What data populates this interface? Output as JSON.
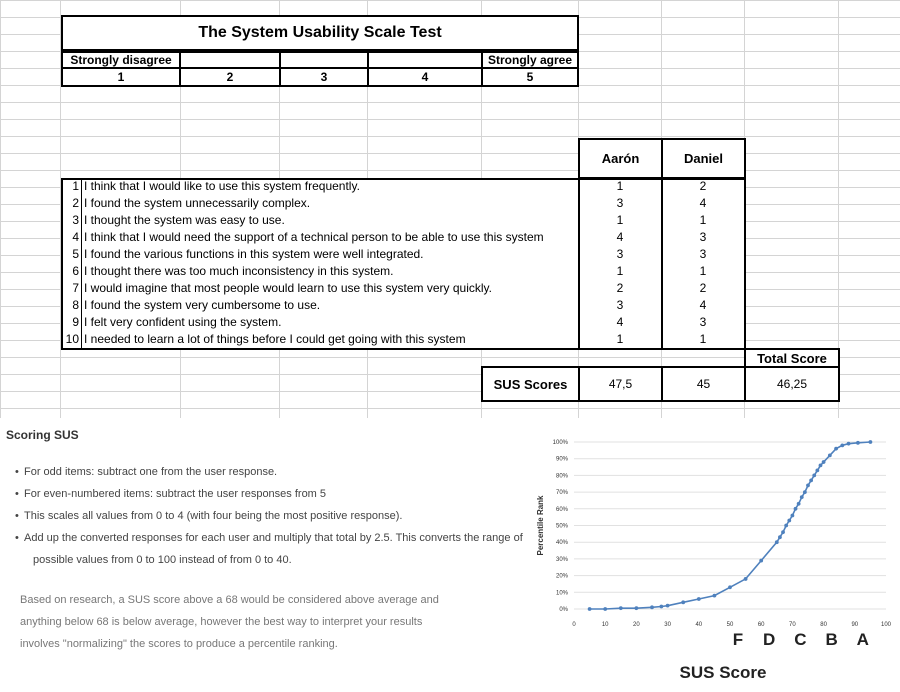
{
  "table": {
    "title": "The System Usability Scale Test",
    "scale": {
      "low_label": "Strongly disagree",
      "high_label": "Strongly agree",
      "numbers": [
        "1",
        "2",
        "3",
        "4",
        "5"
      ]
    },
    "users": [
      "Aarón",
      "Daniel"
    ],
    "statements": [
      {
        "n": "1",
        "text": "I think that I would like to use this system frequently.",
        "scores": [
          "1",
          "2"
        ]
      },
      {
        "n": "2",
        "text": "I found the system unnecessarily complex.",
        "scores": [
          "3",
          "4"
        ]
      },
      {
        "n": "3",
        "text": "I thought the system was easy to use.",
        "scores": [
          "1",
          "1"
        ]
      },
      {
        "n": "4",
        "text": "I think that I would need the support of a technical person to be able to use this system",
        "scores": [
          "4",
          "3"
        ]
      },
      {
        "n": "5",
        "text": "I found the various functions in this system were well integrated.",
        "scores": [
          "3",
          "3"
        ]
      },
      {
        "n": "6",
        "text": "I thought there was too much inconsistency in this system.",
        "scores": [
          "1",
          "1"
        ]
      },
      {
        "n": "7",
        "text": "I would imagine that most people would learn to use this system very quickly.",
        "scores": [
          "2",
          "2"
        ]
      },
      {
        "n": "8",
        "text": "I found the system very cumbersome to use.",
        "scores": [
          "3",
          "4"
        ]
      },
      {
        "n": "9",
        "text": "I felt very confident using the system.",
        "scores": [
          "4",
          "3"
        ]
      },
      {
        "n": "10",
        "text": "I needed to learn a lot of things before I could get going with this system",
        "scores": [
          "1",
          "1"
        ]
      }
    ],
    "total_label": "Total Score",
    "sus_label": "SUS Scores",
    "sus_values": [
      "47,5",
      "45"
    ],
    "total_value": "46,25"
  },
  "scoring": {
    "heading": "Scoring SUS",
    "bullets": [
      "For odd items: subtract one from the user response.",
      "For even-numbered items: subtract the user responses from 5",
      "This scales all values from 0 to 4 (with four being the most positive response).",
      "Add up the converted responses for each user and multiply that total by 2.5. This converts the range of"
    ],
    "bullet_continuation": "possible values from 0 to 100 instead of from 0 to 40.",
    "paragraph_lines": [
      "Based on research, a SUS score above a 68 would be considered above average and",
      "anything below 68 is below average, however the best way to interpret your results",
      "involves \"normalizing\" the scores to produce a percentile ranking."
    ]
  },
  "chart_data": {
    "type": "line",
    "ylabel": "Percentile Rank",
    "xlabel": "SUS Score",
    "xlim": [
      0,
      100
    ],
    "ylim": [
      0,
      100
    ],
    "x_ticks": [
      "0",
      "10",
      "20",
      "30",
      "40",
      "50",
      "60",
      "70",
      "80",
      "90",
      "100"
    ],
    "y_ticks": [
      "0%",
      "10%",
      "20%",
      "30%",
      "40%",
      "50%",
      "60%",
      "70%",
      "80%",
      "90%",
      "100%"
    ],
    "grades": [
      {
        "label": "F",
        "x": 50
      },
      {
        "label": "D",
        "x": 60
      },
      {
        "label": "C",
        "x": 70
      },
      {
        "label": "B",
        "x": 80
      },
      {
        "label": "A",
        "x": 90
      }
    ],
    "series": [
      {
        "color": "#4f81bd",
        "points": [
          [
            5,
            0
          ],
          [
            10,
            0
          ],
          [
            15,
            0.5
          ],
          [
            20,
            0.5
          ],
          [
            25,
            1
          ],
          [
            28,
            1.5
          ],
          [
            30,
            2
          ],
          [
            35,
            4
          ],
          [
            40,
            6
          ],
          [
            45,
            8
          ],
          [
            50,
            13
          ],
          [
            55,
            18
          ],
          [
            60,
            29
          ],
          [
            65,
            40
          ],
          [
            66,
            43
          ],
          [
            67,
            46
          ],
          [
            68,
            50
          ],
          [
            69,
            53
          ],
          [
            70,
            56
          ],
          [
            71,
            60
          ],
          [
            72,
            63
          ],
          [
            73,
            67
          ],
          [
            74,
            70
          ],
          [
            75,
            74
          ],
          [
            76,
            77
          ],
          [
            77,
            80
          ],
          [
            78,
            83
          ],
          [
            79,
            86
          ],
          [
            80,
            88
          ],
          [
            82,
            92
          ],
          [
            84,
            96
          ],
          [
            86,
            98
          ],
          [
            88,
            99
          ],
          [
            91,
            99.5
          ],
          [
            95,
            100
          ]
        ]
      }
    ]
  }
}
